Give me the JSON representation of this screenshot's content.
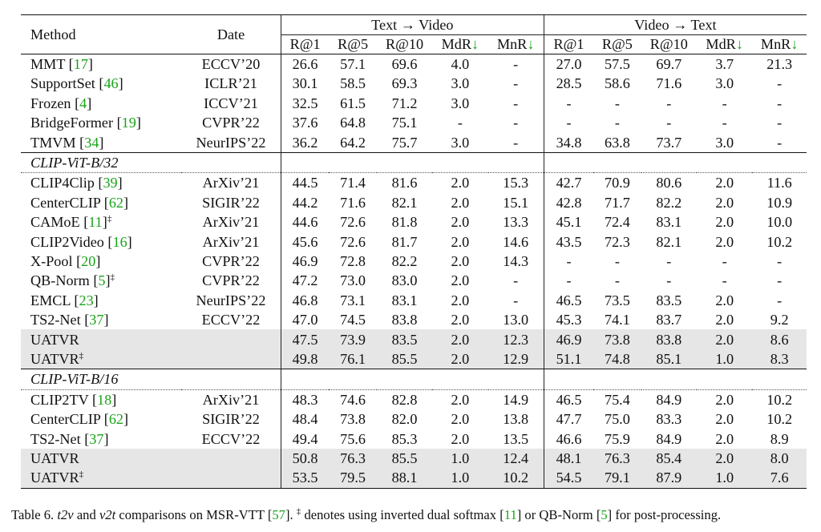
{
  "table": {
    "header": {
      "method": "Method",
      "date": "Date",
      "group_t2v": "Text → Video",
      "group_v2t": "Video → Text",
      "metrics": [
        "R@1",
        "R@5",
        "R@10",
        "MdR",
        "MnR"
      ],
      "arrow": "↓"
    },
    "sections": [
      {
        "title": "",
        "rows": [
          {
            "method": "MMT",
            "cite": "17",
            "dagger": "",
            "date": "ECCV’20",
            "values": [
              "26.6",
              "57.1",
              "69.6",
              "4.0",
              "-",
              "27.0",
              "57.5",
              "69.7",
              "3.7",
              "21.3"
            ]
          },
          {
            "method": "SupportSet",
            "cite": "46",
            "dagger": "",
            "date": "ICLR’21",
            "values": [
              "30.1",
              "58.5",
              "69.3",
              "3.0",
              "-",
              "28.5",
              "58.6",
              "71.6",
              "3.0",
              "-"
            ]
          },
          {
            "method": "Frozen",
            "cite": "4",
            "dagger": "",
            "date": "ICCV’21",
            "values": [
              "32.5",
              "61.5",
              "71.2",
              "3.0",
              "-",
              "-",
              "-",
              "-",
              "-",
              "-"
            ]
          },
          {
            "method": "BridgeFormer",
            "cite": "19",
            "dagger": "",
            "date": "CVPR’22",
            "values": [
              "37.6",
              "64.8",
              "75.1",
              "-",
              "-",
              "-",
              "-",
              "-",
              "-",
              "-"
            ]
          },
          {
            "method": "TMVM",
            "cite": "34",
            "dagger": "",
            "date": "NeurIPS’22",
            "values": [
              "36.2",
              "64.2",
              "75.7",
              "3.0",
              "-",
              "34.8",
              "63.8",
              "73.7",
              "3.0",
              "-"
            ]
          }
        ]
      },
      {
        "title": "CLIP-ViT-B/32",
        "rows": [
          {
            "method": "CLIP4Clip",
            "cite": "39",
            "dagger": "",
            "date": "ArXiv’21",
            "values": [
              "44.5",
              "71.4",
              "81.6",
              "2.0",
              "15.3",
              "42.7",
              "70.9",
              "80.6",
              "2.0",
              "11.6"
            ]
          },
          {
            "method": "CenterCLIP",
            "cite": "62",
            "dagger": "",
            "date": "SIGIR’22",
            "values": [
              "44.2",
              "71.6",
              "82.1",
              "2.0",
              "15.1",
              "42.8",
              "71.7",
              "82.2",
              "2.0",
              "10.9"
            ]
          },
          {
            "method": "CAMoE",
            "cite": "11",
            "dagger": "‡",
            "date": "ArXiv’21",
            "values": [
              "44.6",
              "72.6",
              "81.8",
              "2.0",
              "13.3",
              "45.1",
              "72.4",
              "83.1",
              "2.0",
              "10.0"
            ]
          },
          {
            "method": "CLIP2Video",
            "cite": "16",
            "dagger": "",
            "date": "ArXiv’21",
            "values": [
              "45.6",
              "72.6",
              "81.7",
              "2.0",
              "14.6",
              "43.5",
              "72.3",
              "82.1",
              "2.0",
              "10.2"
            ]
          },
          {
            "method": "X-Pool",
            "cite": "20",
            "dagger": "",
            "date": "CVPR’22",
            "values": [
              "46.9",
              "72.8",
              "82.2",
              "2.0",
              "14.3",
              "-",
              "-",
              "-",
              "-",
              "-"
            ]
          },
          {
            "method": "QB-Norm",
            "cite": "5",
            "dagger": "‡",
            "date": "CVPR’22",
            "values": [
              "47.2",
              "73.0",
              "83.0",
              "2.0",
              "-",
              "-",
              "-",
              "-",
              "-",
              "-"
            ]
          },
          {
            "method": "EMCL",
            "cite": "23",
            "dagger": "",
            "date": "NeurIPS’22",
            "values": [
              "46.8",
              "73.1",
              "83.1",
              "2.0",
              "-",
              "46.5",
              "73.5",
              "83.5",
              "2.0",
              "-"
            ]
          },
          {
            "method": "TS2-Net",
            "cite": "37",
            "dagger": "",
            "date": "ECCV’22",
            "values": [
              "47.0",
              "74.5",
              "83.8",
              "2.0",
              "13.0",
              "45.3",
              "74.1",
              "83.7",
              "2.0",
              "9.2"
            ],
            "bold": [
              1,
              2,
              6
            ]
          },
          {
            "method": "UATVR",
            "cite": "",
            "dagger": "",
            "date": "",
            "highlight": true,
            "values": [
              "47.5",
              "73.9",
              "83.5",
              "2.0",
              "12.3",
              "46.9",
              "73.8",
              "83.8",
              "2.0",
              "8.6"
            ],
            "bold": [
              0,
              4,
              5,
              7,
              9
            ]
          },
          {
            "method": "UATVR",
            "cite": "",
            "dagger": "‡",
            "date": "",
            "highlight": true,
            "values": [
              "49.8",
              "76.1",
              "85.5",
              "2.0",
              "12.9",
              "51.1",
              "74.8",
              "85.1",
              "1.0",
              "8.3"
            ],
            "bold": [
              0,
              1,
              2,
              5,
              6,
              7,
              8,
              9
            ]
          }
        ]
      },
      {
        "title": "CLIP-ViT-B/16",
        "rows": [
          {
            "method": "CLIP2TV",
            "cite": "18",
            "dagger": "",
            "date": "ArXiv’21",
            "values": [
              "48.3",
              "74.6",
              "82.8",
              "2.0",
              "14.9",
              "46.5",
              "75.4",
              "84.9",
              "2.0",
              "10.2"
            ]
          },
          {
            "method": "CenterCLIP",
            "cite": "62",
            "dagger": "",
            "date": "SIGIR’22",
            "values": [
              "48.4",
              "73.8",
              "82.0",
              "2.0",
              "13.8",
              "47.7",
              "75.0",
              "83.3",
              "2.0",
              "10.2"
            ]
          },
          {
            "method": "TS2-Net",
            "cite": "37",
            "dagger": "",
            "date": "ECCV’22",
            "values": [
              "49.4",
              "75.6",
              "85.3",
              "2.0",
              "13.5",
              "46.6",
              "75.9",
              "84.9",
              "2.0",
              "8.9"
            ]
          },
          {
            "method": "UATVR",
            "cite": "",
            "dagger": "",
            "date": "",
            "highlight": true,
            "values": [
              "50.8",
              "76.3",
              "85.5",
              "1.0",
              "12.4",
              "48.1",
              "76.3",
              "85.4",
              "2.0",
              "8.0"
            ],
            "bold": [
              0,
              1,
              2,
              3,
              5,
              6,
              7,
              9
            ]
          },
          {
            "method": "UATVR",
            "cite": "",
            "dagger": "‡",
            "date": "",
            "highlight": true,
            "values": [
              "53.5",
              "79.5",
              "88.1",
              "1.0",
              "10.2",
              "54.5",
              "79.1",
              "87.9",
              "1.0",
              "7.6"
            ],
            "bold": [
              0,
              1,
              2,
              3,
              4,
              5,
              6,
              7,
              8,
              9
            ]
          }
        ]
      }
    ]
  },
  "caption": {
    "label": "Table 6.",
    "t2v": "t2v",
    "and": "and",
    "v2t": "v2t",
    "text1": "comparisons on MSR-VTT [",
    "cite1": "57",
    "text2": "].",
    "dagger": "‡",
    "text3": "denotes using inverted dual softmax [",
    "cite2": "11",
    "text4": "] or QB-Norm [",
    "cite3": "5",
    "text5": "] for post-processing."
  }
}
